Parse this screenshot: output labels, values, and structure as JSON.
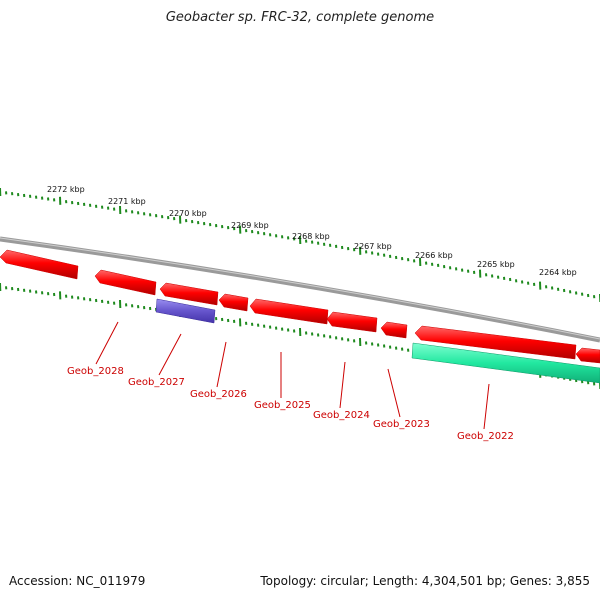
{
  "title": "Geobacter sp. FRC-32, complete genome",
  "accession": "Accession: NC_011979",
  "summary": "Topology: circular; Length: 4,304,501 bp; Genes: 3,855",
  "colors": {
    "backbone": "#8a8a8a",
    "tick": "#1e8a1e",
    "gene_forward": "#ff0000",
    "gene_reverse": "#6655cc",
    "gene_highlight": "#22e8a0",
    "label": "#cc0000"
  },
  "kbp_labels": [
    "2272 kbp",
    "2271 kbp",
    "2270 kbp",
    "2269 kbp",
    "2268 kbp",
    "2267 kbp",
    "2266 kbp",
    "2265 kbp",
    "2264 kbp"
  ],
  "gene_labels": [
    "Geob_2028",
    "Geob_2027",
    "Geob_2026",
    "Geob_2025",
    "Geob_2024",
    "Geob_2023",
    "Geob_2022"
  ]
}
